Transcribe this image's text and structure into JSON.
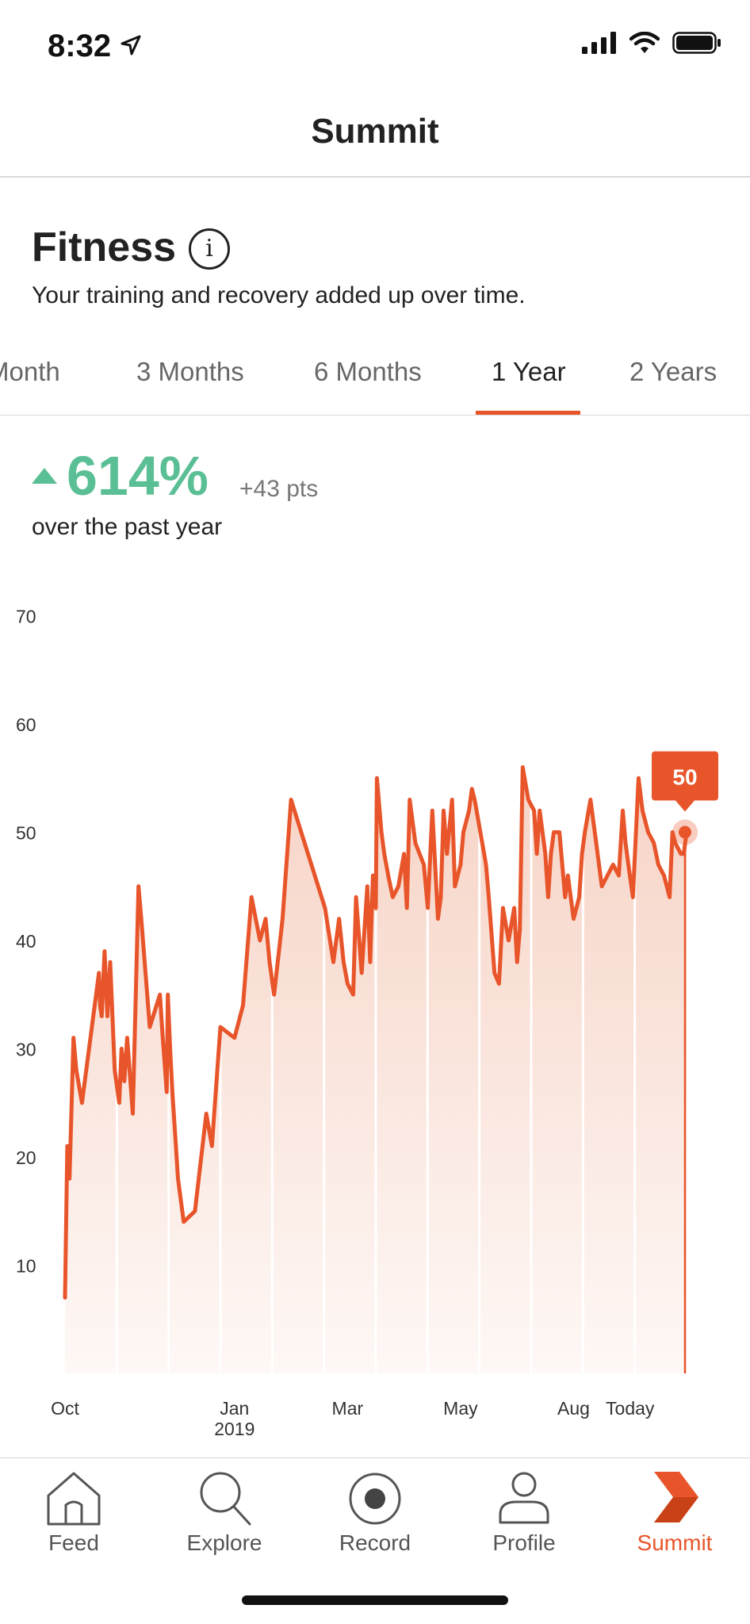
{
  "status_bar": {
    "time": "8:32",
    "icons": [
      "location-arrow-icon",
      "cellular-signal-icon",
      "wifi-icon",
      "battery-icon"
    ]
  },
  "header": {
    "title": "Summit"
  },
  "section": {
    "title": "Fitness",
    "subtitle": "Your training and recovery added up over time.",
    "info_icon": "info-icon"
  },
  "tabs": [
    {
      "label": "Month",
      "active": false
    },
    {
      "label": "3 Months",
      "active": false
    },
    {
      "label": "6 Months",
      "active": false
    },
    {
      "label": "1 Year",
      "active": true
    },
    {
      "label": "2 Years",
      "active": false
    }
  ],
  "summary": {
    "change_percent": "614%",
    "change_points": "+43 pts",
    "period": "over the past year",
    "trend_icon": "triangle-up-icon"
  },
  "colors": {
    "accent": "#e8552a",
    "positive": "#5bbf95",
    "fill": "#f8ddd2"
  },
  "chart_data": {
    "type": "area",
    "title": "",
    "xlabel": "",
    "ylabel": "",
    "ylim": [
      0,
      70
    ],
    "yticks": [
      10,
      20,
      30,
      40,
      50,
      60,
      70
    ],
    "xticks": [
      {
        "label": "Oct",
        "sub": "",
        "x": 0
      },
      {
        "label": "Jan",
        "sub": "2019",
        "x": 3.0
      },
      {
        "label": "Mar",
        "sub": "",
        "x": 5.0
      },
      {
        "label": "May",
        "sub": "",
        "x": 7.0
      },
      {
        "label": "Aug",
        "sub": "",
        "x": 9.0
      },
      {
        "label": "Today",
        "sub": "",
        "x": 10.0
      }
    ],
    "grid": false,
    "legend": "none",
    "series": [
      {
        "x": [
          0,
          0.04,
          0.08,
          0.15,
          0.2,
          0.3,
          0.6,
          0.62,
          0.65,
          0.7,
          0.75,
          0.8,
          0.88,
          0.96,
          1.0,
          1.05,
          1.1,
          1.2,
          1.3,
          1.35,
          1.5,
          1.68,
          1.73,
          1.8,
          1.82,
          1.86,
          1.9,
          1.95,
          2.0,
          2.1,
          2.3,
          2.5,
          2.6,
          2.75,
          3.0,
          3.15,
          3.3,
          3.45,
          3.55,
          3.62,
          3.7,
          3.85,
          4.0,
          4.3,
          4.6,
          4.75,
          4.85,
          4.93,
          5.0,
          5.1,
          5.15,
          5.25,
          5.35,
          5.4,
          5.45,
          5.5,
          5.52,
          5.6,
          5.65,
          5.72,
          5.8,
          5.9,
          6.0,
          6.05,
          6.1,
          6.2,
          6.35,
          6.42,
          6.5,
          6.6,
          6.65,
          6.7,
          6.76,
          6.85,
          6.9,
          7.0,
          7.05,
          7.15,
          7.2,
          7.25,
          7.35,
          7.45,
          7.5,
          7.6,
          7.68,
          7.75,
          7.85,
          7.95,
          8.0,
          8.05,
          8.1,
          8.2,
          8.3,
          8.35,
          8.4,
          8.45,
          8.5,
          8.55,
          8.6,
          8.65,
          8.75,
          8.85,
          8.9,
          9.0,
          9.1,
          9.15,
          9.2,
          9.3,
          9.4,
          9.5,
          9.7,
          9.8,
          9.87,
          9.92,
          9.97,
          10.05,
          10.15,
          10.22,
          10.32,
          10.42,
          10.5,
          10.6,
          10.7,
          10.75,
          10.8,
          10.9,
          10.95,
          11.0
        ],
        "y": [
          7,
          21,
          18,
          31,
          28,
          25,
          37,
          34,
          33,
          39,
          33,
          38,
          28,
          25,
          30,
          27,
          31,
          24,
          45,
          42,
          32,
          35,
          31,
          26,
          35,
          30,
          26,
          22,
          18,
          14,
          15,
          24,
          21,
          32,
          31,
          34,
          44,
          40,
          42,
          38,
          35,
          42,
          53,
          48,
          43,
          38,
          42,
          38,
          36,
          35,
          44,
          37,
          45,
          38,
          46,
          43,
          55,
          50,
          48,
          46,
          44,
          45,
          48,
          43,
          53,
          49,
          47,
          43,
          52,
          42,
          44,
          52,
          48,
          53,
          45,
          47,
          50,
          52,
          54,
          53,
          50,
          47,
          44,
          37,
          36,
          43,
          40,
          43,
          38,
          41,
          56,
          53,
          52,
          48,
          52,
          50,
          48,
          44,
          48,
          50,
          50,
          44,
          46,
          42,
          44,
          48,
          50,
          53,
          49,
          45,
          47,
          46,
          52,
          49,
          47,
          44,
          55,
          52,
          50,
          49,
          47,
          46,
          44,
          50,
          49,
          48,
          48,
          50
        ]
      }
    ],
    "tooltip": {
      "label": "50",
      "value": 50
    }
  },
  "tabbar": {
    "items": [
      {
        "label": "Feed",
        "icon": "home-icon",
        "active": false
      },
      {
        "label": "Explore",
        "icon": "search-icon",
        "active": false
      },
      {
        "label": "Record",
        "icon": "record-icon",
        "active": false
      },
      {
        "label": "Profile",
        "icon": "profile-icon",
        "active": false
      },
      {
        "label": "Summit",
        "icon": "summit-icon",
        "active": true
      }
    ]
  }
}
